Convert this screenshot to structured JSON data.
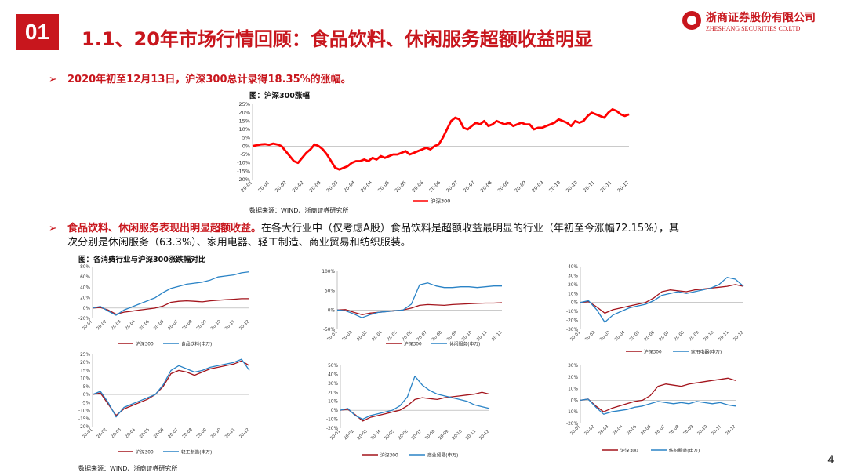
{
  "badge": "01",
  "title": "1.1、20年市场行情回顾：食品饮料、休闲服务超额收益明显",
  "brand": {
    "cn": "浙商证券股份有限公司",
    "en": "ZHESHANG SECURITIES CO.LTD"
  },
  "bullet1": {
    "text": "2020年初至12月13日，沪深300总计录得18.35%的涨幅。"
  },
  "bullet2": {
    "bold": "食品饮料、休闲服务表现出明显超额收益。",
    "text1": "在各大行业中（仅考虑A股）食品饮料是超额收益最明显的行业（年初至今涨幅72.15%），其",
    "text2": "次分别是休闲服务（63.3%）、家用电器、轻工制造、商业贸易和纺织服装。"
  },
  "fig1_caption": "图：沪深300涨幅",
  "fig2_caption": "图：各消费行业与沪深300涨跌幅对比",
  "source": "数据来源：WIND、浙商证券研究所",
  "page_number": "4",
  "colors": {
    "red": "#c8161d",
    "darkred": "#a3141c",
    "blue": "#2a83c6"
  },
  "chart_data": [
    {
      "type": "line",
      "title": "图：沪深300涨幅",
      "x_ticks": [
        "20-01",
        "20-01",
        "20-02",
        "20-02",
        "20-03",
        "20-03",
        "20-04",
        "20-04",
        "20-05",
        "20-05",
        "20-06",
        "20-06",
        "20-07",
        "20-07",
        "20-08",
        "20-08",
        "20-09",
        "20-09",
        "20-10",
        "20-10",
        "20-11",
        "20-11",
        "20-12"
      ],
      "y_ticks": [
        "25%",
        "20%",
        "15%",
        "10%",
        "5%",
        "0%",
        "-5%",
        "-10%",
        "-15%",
        "-20%"
      ],
      "ylim": [
        -20,
        25
      ],
      "series": [
        {
          "name": "沪深300",
          "color": "#ff0000",
          "values": [
            0,
            0.5,
            1,
            1.2,
            0.8,
            1.5,
            1,
            0,
            -3,
            -6,
            -9,
            -10,
            -7,
            -4,
            -2,
            1,
            0,
            -2,
            -5,
            -9,
            -13,
            -14,
            -13,
            -12,
            -10,
            -9,
            -9,
            -8,
            -9,
            -7,
            -8,
            -6,
            -7,
            -6,
            -5,
            -5,
            -4,
            -3,
            -5,
            -4,
            -3,
            -2,
            -1,
            -2,
            0,
            1,
            5,
            10,
            15,
            17,
            16,
            11,
            10,
            12,
            14,
            13,
            15,
            12,
            13,
            15,
            14,
            13,
            14,
            12,
            13,
            14,
            13,
            13,
            10,
            11,
            11,
            12,
            13,
            14,
            16,
            15,
            14,
            12,
            15,
            14,
            15,
            18,
            20,
            19,
            18,
            17,
            20,
            22,
            21,
            19,
            18,
            19
          ]
        }
      ]
    },
    {
      "type": "line",
      "x_ticks": [
        "20-01",
        "20-02",
        "20-03",
        "20-04",
        "20-05",
        "20-06",
        "20-07",
        "20-08",
        "20-09",
        "20-10",
        "20-11",
        "20-12"
      ],
      "y_ticks": [
        "80%",
        "60%",
        "40%",
        "20%",
        "0%",
        "-20%"
      ],
      "ylim": [
        -20,
        80
      ],
      "series": [
        {
          "name": "沪深300",
          "color": "#a3141c",
          "values": [
            0,
            1,
            -4,
            -12,
            -8,
            -6,
            -4,
            -2,
            0,
            4,
            11,
            13,
            14,
            13,
            12,
            14,
            15,
            16,
            17,
            18,
            18
          ]
        },
        {
          "name": "食品饮料(申万)",
          "color": "#2a83c6",
          "values": [
            0,
            3,
            -6,
            -14,
            -4,
            2,
            8,
            14,
            20,
            30,
            38,
            42,
            46,
            48,
            50,
            54,
            60,
            62,
            64,
            68,
            70
          ]
        }
      ]
    },
    {
      "type": "line",
      "x_ticks": [
        "20-01",
        "20-02",
        "20-03",
        "20-04",
        "20-05",
        "20-06",
        "20-07",
        "20-08",
        "20-09",
        "20-10",
        "20-11",
        "20-12"
      ],
      "y_ticks": [
        "100%",
        "50%",
        "0%",
        "-50%"
      ],
      "ylim": [
        -50,
        100
      ],
      "series": [
        {
          "name": "沪深300",
          "color": "#a3141c",
          "values": [
            0,
            1,
            -6,
            -12,
            -8,
            -6,
            -4,
            -2,
            0,
            5,
            12,
            14,
            13,
            12,
            14,
            15,
            16,
            17,
            18,
            18,
            19
          ]
        },
        {
          "name": "休闲服务(申万)",
          "color": "#2a83c6",
          "values": [
            0,
            -2,
            -10,
            -20,
            -12,
            -6,
            -4,
            -2,
            0,
            15,
            65,
            70,
            62,
            58,
            58,
            60,
            60,
            58,
            60,
            62,
            62
          ]
        }
      ]
    },
    {
      "type": "line",
      "x_ticks": [
        "20-01",
        "20-02",
        "20-03",
        "20-04",
        "20-05",
        "20-06",
        "20-07",
        "20-08",
        "20-09",
        "20-10",
        "20-11",
        "20-12"
      ],
      "y_ticks": [
        "40%",
        "30%",
        "20%",
        "10%",
        "0%",
        "-10%",
        "-20%",
        "-30%"
      ],
      "ylim": [
        -30,
        40
      ],
      "series": [
        {
          "name": "沪深300",
          "color": "#a3141c",
          "values": [
            0,
            1,
            -5,
            -12,
            -8,
            -6,
            -4,
            -2,
            0,
            5,
            12,
            14,
            13,
            12,
            14,
            15,
            16,
            17,
            18,
            20,
            18
          ]
        },
        {
          "name": "家用电器(申万)",
          "color": "#2a83c6",
          "values": [
            0,
            2,
            -8,
            -22,
            -14,
            -10,
            -6,
            -4,
            -2,
            2,
            8,
            10,
            12,
            10,
            12,
            14,
            16,
            20,
            28,
            26,
            18
          ]
        }
      ]
    },
    {
      "type": "line",
      "x_ticks": [
        "20-01",
        "20-02",
        "20-03",
        "20-04",
        "20-05",
        "20-06",
        "20-07",
        "20-08",
        "20-09",
        "20-10",
        "20-11",
        "20-12"
      ],
      "y_ticks": [
        "25%",
        "20%",
        "15%",
        "10%",
        "5%",
        "0%",
        "-5%",
        "-10%",
        "-15%",
        "-20%"
      ],
      "ylim": [
        -20,
        25
      ],
      "series": [
        {
          "name": "沪深300",
          "color": "#a3141c",
          "values": [
            0,
            1,
            -6,
            -13,
            -9,
            -7,
            -5,
            -3,
            0,
            5,
            13,
            15,
            14,
            12,
            14,
            16,
            17,
            18,
            19,
            21,
            18
          ]
        },
        {
          "name": "轻工制造(申万)",
          "color": "#2a83c6",
          "values": [
            0,
            2,
            -5,
            -14,
            -8,
            -6,
            -4,
            -2,
            0,
            6,
            15,
            18,
            16,
            14,
            15,
            17,
            18,
            19,
            20,
            22,
            15
          ]
        }
      ]
    },
    {
      "type": "line",
      "x_ticks": [
        "20-01",
        "20-02",
        "20-03",
        "20-04",
        "20-05",
        "20-06",
        "20-07",
        "20-08",
        "20-09",
        "20-10",
        "20-11",
        "20-12"
      ],
      "y_ticks": [
        "50%",
        "40%",
        "30%",
        "20%",
        "10%",
        "0%",
        "-10%",
        "-20%"
      ],
      "ylim": [
        -20,
        50
      ],
      "series": [
        {
          "name": "沪深300",
          "color": "#a3141c",
          "values": [
            0,
            1,
            -5,
            -12,
            -8,
            -6,
            -4,
            -2,
            0,
            5,
            12,
            14,
            13,
            12,
            14,
            15,
            16,
            17,
            18,
            20,
            18
          ]
        },
        {
          "name": "商业贸易(申万)",
          "color": "#2a83c6",
          "values": [
            0,
            2,
            -6,
            -10,
            -6,
            -4,
            -2,
            0,
            5,
            15,
            38,
            28,
            22,
            18,
            16,
            14,
            12,
            10,
            6,
            4,
            2
          ]
        }
      ]
    },
    {
      "type": "line",
      "x_ticks": [
        "20-01",
        "20-02",
        "20-03",
        "20-04",
        "20-05",
        "20-06",
        "20-07",
        "20-08",
        "20-09",
        "20-10",
        "20-11",
        "20-12"
      ],
      "y_ticks": [
        "30%",
        "20%",
        "10%",
        "0%",
        "-10%",
        "-20%"
      ],
      "ylim": [
        -20,
        30
      ],
      "series": [
        {
          "name": "沪深300",
          "color": "#a3141c",
          "values": [
            0,
            1,
            -5,
            -10,
            -7,
            -5,
            -3,
            -1,
            0,
            4,
            12,
            14,
            13,
            12,
            14,
            15,
            16,
            17,
            18,
            19,
            17
          ]
        },
        {
          "name": "纺织服装(申万)",
          "color": "#2a83c6",
          "values": [
            0,
            1,
            -6,
            -12,
            -10,
            -9,
            -8,
            -6,
            -5,
            -3,
            -1,
            -2,
            -3,
            -2,
            -3,
            -1,
            -2,
            -3,
            -2,
            -4,
            -5
          ]
        }
      ]
    }
  ]
}
